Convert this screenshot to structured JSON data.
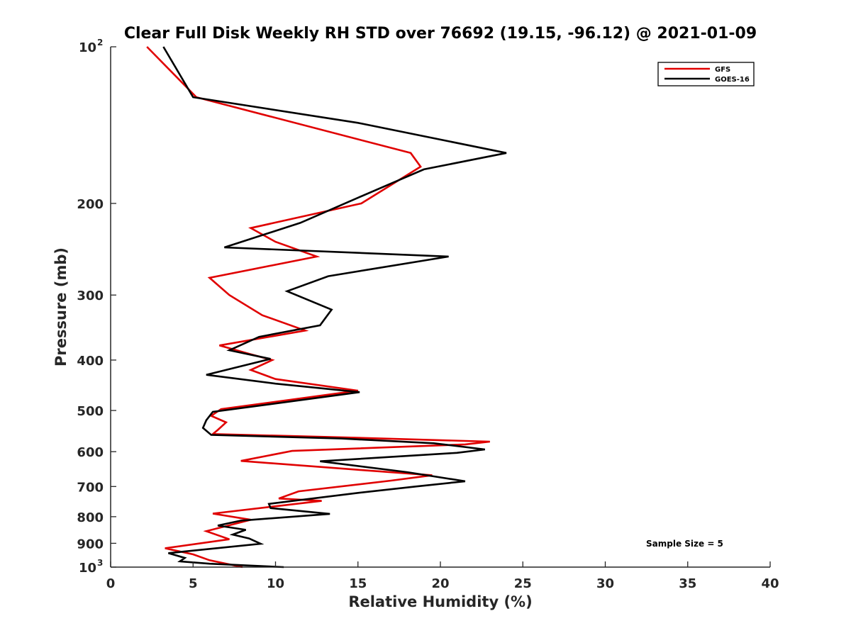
{
  "colors": {
    "gfs": "#e00000",
    "goes": "#000000",
    "axis": "#262626"
  },
  "chart_data": {
    "type": "line",
    "title": "Clear Full Disk Weekly RH STD over 76692 (19.15, -96.12) @ 2021-01-09",
    "xlabel": "Relative Humidity (%)",
    "ylabel": "Pressure (mb)",
    "xlim": [
      0,
      40
    ],
    "ylim": [
      100,
      1000
    ],
    "yscale": "log",
    "y_reversed": true,
    "x_ticks": [
      {
        "value": 0,
        "label": "0"
      },
      {
        "value": 5,
        "label": "5"
      },
      {
        "value": 10,
        "label": "10"
      },
      {
        "value": 15,
        "label": "15"
      },
      {
        "value": 20,
        "label": "20"
      },
      {
        "value": 25,
        "label": "25"
      },
      {
        "value": 30,
        "label": "30"
      },
      {
        "value": 35,
        "label": "35"
      },
      {
        "value": 40,
        "label": "40"
      }
    ],
    "y_ticks": [
      {
        "value": 100,
        "base": "10",
        "exp": "2"
      },
      {
        "value": 200,
        "label": "200"
      },
      {
        "value": 300,
        "label": "300"
      },
      {
        "value": 400,
        "label": "400"
      },
      {
        "value": 500,
        "label": "500"
      },
      {
        "value": 600,
        "label": "600"
      },
      {
        "value": 700,
        "label": "700"
      },
      {
        "value": 800,
        "label": "800"
      },
      {
        "value": 900,
        "label": "900"
      },
      {
        "value": 1000,
        "base": "10",
        "exp": "3"
      }
    ],
    "legend_position": "top-right",
    "annotation": "Sample Size = 5",
    "series": [
      {
        "name": "GFS",
        "color": "#e00000",
        "points": [
          [
            2.2,
            100
          ],
          [
            5.2,
            125
          ],
          [
            18.2,
            160
          ],
          [
            18.8,
            170
          ],
          [
            15.2,
            200
          ],
          [
            8.5,
            223
          ],
          [
            10,
            237
          ],
          [
            12.5,
            253
          ],
          [
            6,
            278
          ],
          [
            7.2,
            300
          ],
          [
            9.2,
            328
          ],
          [
            11.8,
            351
          ],
          [
            6.6,
            375
          ],
          [
            8.5,
            390
          ],
          [
            9.8,
            400
          ],
          [
            8.5,
            418
          ],
          [
            10,
            435
          ],
          [
            15,
            458
          ],
          [
            6.7,
            497
          ],
          [
            6.1,
            512
          ],
          [
            7,
            527
          ],
          [
            6.5,
            545
          ],
          [
            6.2,
            555
          ],
          [
            14,
            563
          ],
          [
            23,
            574
          ],
          [
            21.5,
            581
          ],
          [
            11,
            598
          ],
          [
            7.9,
            625
          ],
          [
            15,
            650
          ],
          [
            19.5,
            666
          ],
          [
            17,
            682
          ],
          [
            11.4,
            715
          ],
          [
            10.2,
            738
          ],
          [
            12.8,
            746
          ],
          [
            6.2,
            789
          ],
          [
            8.5,
            811
          ],
          [
            5.8,
            853
          ],
          [
            7.2,
            884
          ],
          [
            3.3,
            920
          ],
          [
            5,
            945
          ],
          [
            6,
            970
          ],
          [
            8,
            1000
          ]
        ]
      },
      {
        "name": "GOES-16",
        "color": "#000000",
        "points": [
          [
            3.2,
            100
          ],
          [
            5,
            125
          ],
          [
            15,
            140
          ],
          [
            24,
            160
          ],
          [
            19,
            172
          ],
          [
            15,
            195
          ],
          [
            11.5,
            218
          ],
          [
            6.9,
            243
          ],
          [
            20.5,
            253
          ],
          [
            13.2,
            276
          ],
          [
            10.7,
            295
          ],
          [
            13.4,
            320
          ],
          [
            12.7,
            343
          ],
          [
            9,
            361
          ],
          [
            7.2,
            383
          ],
          [
            9.7,
            398
          ],
          [
            5.8,
            427
          ],
          [
            10,
            444
          ],
          [
            15.1,
            461
          ],
          [
            6.2,
            503
          ],
          [
            5.8,
            522
          ],
          [
            5.6,
            540
          ],
          [
            6.1,
            557
          ],
          [
            14,
            566
          ],
          [
            19.6,
            578
          ],
          [
            22.7,
            594
          ],
          [
            21,
            603
          ],
          [
            12.7,
            626
          ],
          [
            18,
            657
          ],
          [
            21.5,
            684
          ],
          [
            18.5,
            700
          ],
          [
            15,
            720
          ],
          [
            9.6,
            756
          ],
          [
            9.7,
            770
          ],
          [
            13.3,
            790
          ],
          [
            7.9,
            814
          ],
          [
            6.5,
            832
          ],
          [
            8.2,
            848
          ],
          [
            7.4,
            866
          ],
          [
            8.4,
            881
          ],
          [
            9.1,
            902
          ],
          [
            3.5,
            940
          ],
          [
            4.5,
            960
          ],
          [
            4.2,
            975
          ],
          [
            6,
            985
          ],
          [
            10.5,
            1000
          ]
        ]
      }
    ]
  }
}
